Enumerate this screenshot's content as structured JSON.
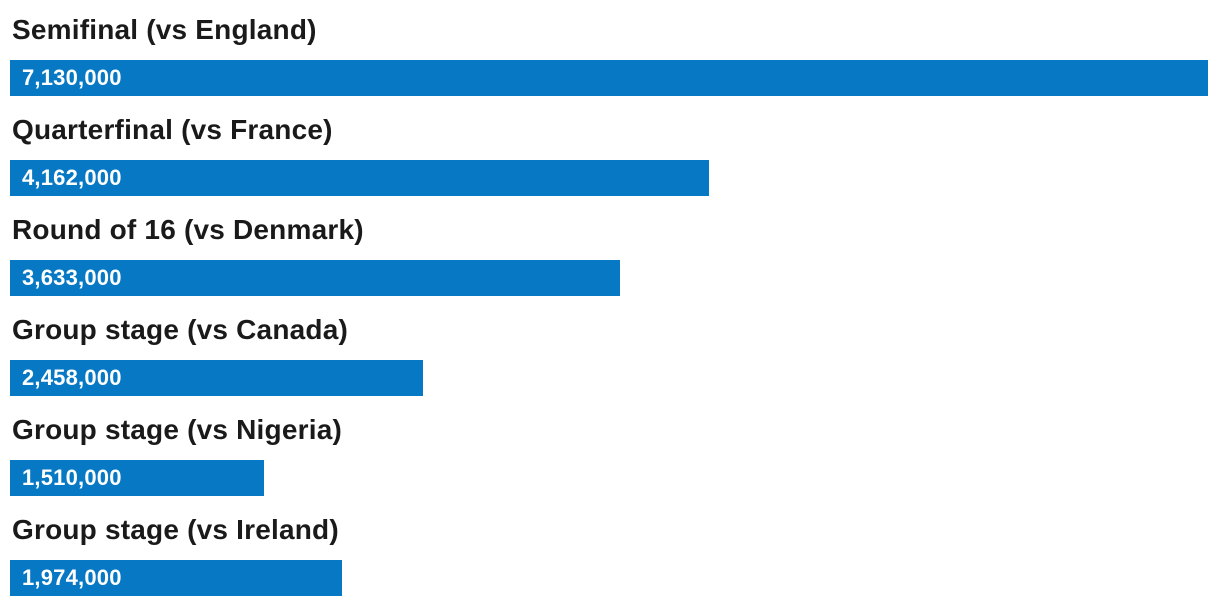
{
  "chart_data": {
    "type": "bar",
    "orientation": "horizontal",
    "title": "",
    "xlabel": "",
    "ylabel": "",
    "legend": "none",
    "grid": false,
    "bar_color": "#0779c4",
    "label_color": "#1a1a1a",
    "value_text_color": "#ffffff",
    "axis_max": 7130000,
    "categories": [
      "Semifinal (vs England)",
      "Quarterfinal (vs France)",
      "Round of 16 (vs Denmark)",
      "Group stage (vs Canada)",
      "Group stage (vs Nigeria)",
      "Group stage (vs Ireland)"
    ],
    "values": [
      7130000,
      4162000,
      3633000,
      2458000,
      1510000,
      1974000
    ],
    "rows": [
      {
        "label": "Semifinal (vs England)",
        "value": 7130000,
        "value_label": "7,130,000"
      },
      {
        "label": "Quarterfinal (vs France)",
        "value": 4162000,
        "value_label": "4,162,000"
      },
      {
        "label": "Round of 16 (vs Denmark)",
        "value": 3633000,
        "value_label": "3,633,000"
      },
      {
        "label": "Group stage (vs Canada)",
        "value": 2458000,
        "value_label": "2,458,000"
      },
      {
        "label": "Group stage (vs Nigeria)",
        "value": 1510000,
        "value_label": "1,510,000"
      },
      {
        "label": "Group stage (vs Ireland)",
        "value": 1974000,
        "value_label": "1,974,000"
      }
    ]
  }
}
